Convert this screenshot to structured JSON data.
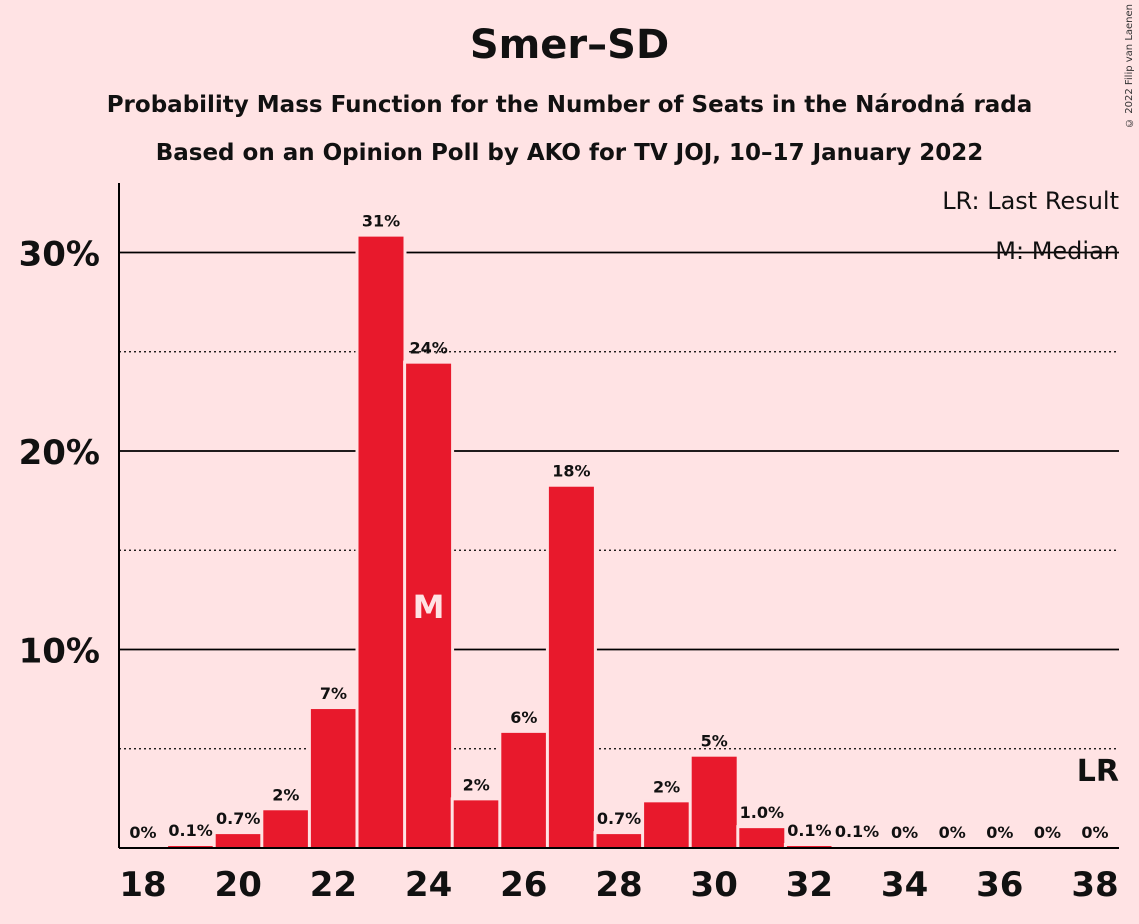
{
  "chart_data": {
    "type": "bar",
    "title": "Smer–SD",
    "subtitle_lines": [
      "Probability Mass Function for the Number of Seats in the Národná rada",
      "Based on an Opinion Poll by AKO for TV JOJ, 10–17 January 2022"
    ],
    "categories": [
      18,
      19,
      20,
      21,
      22,
      23,
      24,
      25,
      26,
      27,
      28,
      29,
      30,
      31,
      32,
      33,
      34,
      35,
      36,
      37,
      38
    ],
    "values": [
      0,
      0.1,
      0.7,
      1.9,
      7.0,
      30.8,
      24.4,
      2.4,
      5.8,
      18.2,
      0.7,
      2.3,
      4.6,
      1.0,
      0.1,
      0.05,
      0,
      0,
      0,
      0,
      0
    ],
    "value_labels": [
      "0%",
      "0.1%",
      "0.7%",
      "2%",
      "7%",
      "31%",
      "24%",
      "2%",
      "6%",
      "18%",
      "0.7%",
      "2%",
      "5%",
      "1.0%",
      "0.1%",
      "0.1%",
      "0%",
      "0%",
      "0%",
      "0%",
      "0%"
    ],
    "x_tick_labels": [
      "18",
      "20",
      "22",
      "24",
      "26",
      "28",
      "30",
      "32",
      "34",
      "36",
      "38"
    ],
    "y_tick_labels": [
      "10%",
      "20%",
      "30%"
    ],
    "y_ticks": [
      10,
      20,
      30
    ],
    "y_minor_ticks": [
      5,
      15,
      25
    ],
    "ylim": [
      0,
      33.5
    ],
    "median_seat": 24,
    "median_marker": "M",
    "last_result_seat": 38,
    "last_result_marker": "LR",
    "legend": [
      "LR: Last Result",
      "M: Median"
    ],
    "legend_position": "top-right",
    "bar_color": "#e8192c",
    "background": "#ffe3e4"
  },
  "copyright": "© 2022 Filip van Laenen"
}
